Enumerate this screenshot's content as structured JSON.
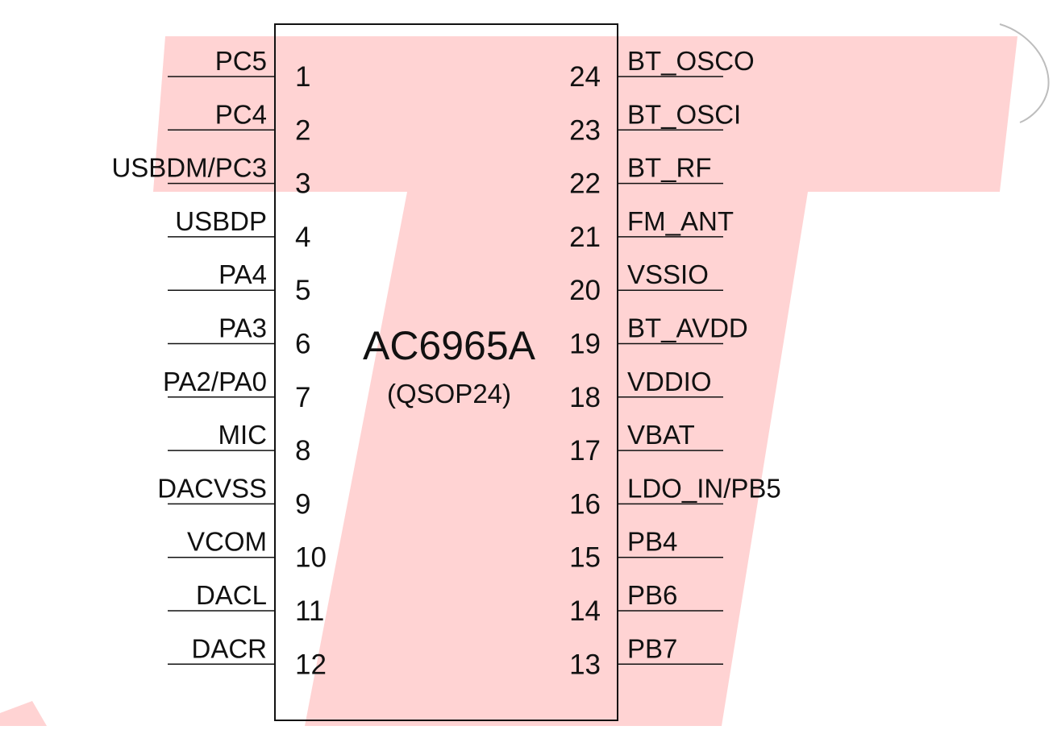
{
  "chip": {
    "name": "AC6965A",
    "package": "(QSOP24)"
  },
  "left_pins": [
    {
      "num": "1",
      "name": "PC5"
    },
    {
      "num": "2",
      "name": "PC4"
    },
    {
      "num": "3",
      "name": "USBDM/PC3"
    },
    {
      "num": "4",
      "name": "USBDP"
    },
    {
      "num": "5",
      "name": "PA4"
    },
    {
      "num": "6",
      "name": "PA3"
    },
    {
      "num": "7",
      "name": "PA2/PA0"
    },
    {
      "num": "8",
      "name": "MIC"
    },
    {
      "num": "9",
      "name": "DACVSS"
    },
    {
      "num": "10",
      "name": "VCOM"
    },
    {
      "num": "11",
      "name": "DACL"
    },
    {
      "num": "12",
      "name": "DACR"
    }
  ],
  "right_pins": [
    {
      "num": "24",
      "name": "BT_OSCO"
    },
    {
      "num": "23",
      "name": "BT_OSCI"
    },
    {
      "num": "22",
      "name": "BT_RF"
    },
    {
      "num": "21",
      "name": "FM_ANT"
    },
    {
      "num": "20",
      "name": "VSSIO"
    },
    {
      "num": "19",
      "name": "BT_AVDD"
    },
    {
      "num": "18",
      "name": "VDDIO"
    },
    {
      "num": "17",
      "name": "VBAT"
    },
    {
      "num": "16",
      "name": "LDO_IN/PB5"
    },
    {
      "num": "15",
      "name": "PB4"
    },
    {
      "num": "14",
      "name": "PB6"
    },
    {
      "num": "13",
      "name": "PB7"
    }
  ],
  "colors": {
    "watermark": "#ffd3d3",
    "line": "#111111",
    "text": "#111111"
  }
}
